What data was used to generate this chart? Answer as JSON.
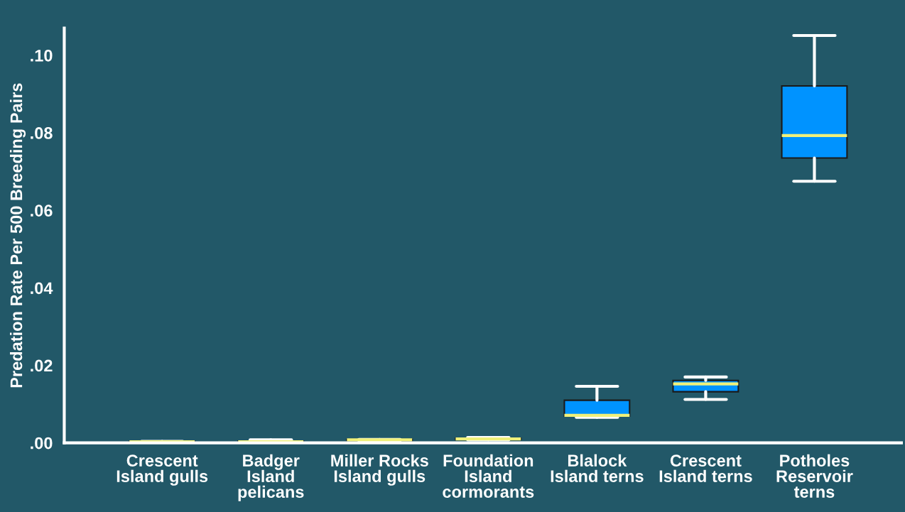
{
  "chart_data": {
    "type": "box",
    "ylabel": "Predation Rate Per 500 Breeding Pairs",
    "categories": [
      "Crescent\nIsland gulls",
      "Badger\nIsland\npelicans",
      "Miller Rocks\nIsland gulls",
      "Foundation\nIsland\ncormorants",
      "Blalock\nIsland terns",
      "Crescent\nIsland terns",
      "Potholes\nReservoir\nterns"
    ],
    "boxes": [
      {
        "low": 0.0002,
        "q1": 0.0002,
        "median": 0.0003,
        "q3": 0.0004,
        "high": 0.0004
      },
      {
        "low": 0.0002,
        "q1": 0.0002,
        "median": 0.0003,
        "q3": 0.0005,
        "high": 0.0008
      },
      {
        "low": 0.0006,
        "q1": 0.0006,
        "median": 0.0008,
        "q3": 0.0009,
        "high": 0.0009
      },
      {
        "low": 0.0008,
        "q1": 0.0008,
        "median": 0.001,
        "q3": 0.0012,
        "high": 0.0014
      },
      {
        "low": 0.0066,
        "q1": 0.0069,
        "median": 0.0071,
        "q3": 0.011,
        "high": 0.0146
      },
      {
        "low": 0.0112,
        "q1": 0.0132,
        "median": 0.0152,
        "q3": 0.0161,
        "high": 0.017
      },
      {
        "low": 0.0675,
        "q1": 0.0735,
        "median": 0.0793,
        "q3": 0.0921,
        "high": 0.1051
      }
    ],
    "color": "#0093ff",
    "ylim": [
      0,
      0.107
    ],
    "yticks": [
      {
        "value": 0,
        "label": ".00"
      },
      {
        "value": 0.02,
        "label": ".02"
      },
      {
        "value": 0.04,
        "label": ".04"
      },
      {
        "value": 0.06,
        "label": ".06"
      },
      {
        "value": 0.08,
        "label": ".08"
      },
      {
        "value": 0.1,
        "label": ".10"
      }
    ],
    "grid": false
  }
}
